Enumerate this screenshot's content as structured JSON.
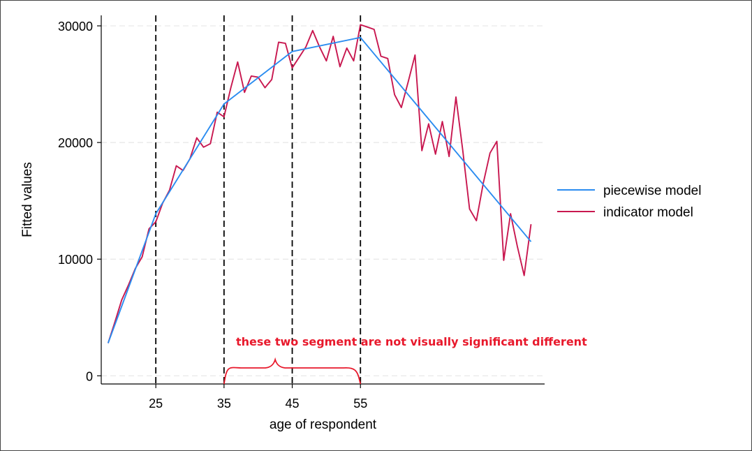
{
  "chart_data": {
    "type": "line",
    "xlabel": "age of respondent",
    "ylabel": "Fitted values",
    "xlim": [
      17,
      82
    ],
    "ylim": [
      -700,
      30900
    ],
    "x_ticks": [
      25,
      35,
      45,
      55
    ],
    "y_ticks": [
      0,
      10000,
      20000,
      30000
    ],
    "x_tick_labels": [
      "25",
      "35",
      "45",
      "55"
    ],
    "y_tick_labels": [
      "0",
      "10000",
      "20000",
      "30000"
    ],
    "grid": "horizontal dashed",
    "legend_position": "right",
    "knots": [
      25,
      35,
      45,
      55
    ],
    "series": [
      {
        "name": "piecewise model",
        "color": "#2b8cf0",
        "x": [
          18,
          25,
          35,
          45,
          55,
          80
        ],
        "y": [
          2800,
          13900,
          23300,
          27800,
          29000,
          11500
        ]
      },
      {
        "name": "indicator model",
        "color": "#c8174f",
        "x": [
          18,
          19,
          20,
          21,
          22,
          23,
          24,
          25,
          26,
          27,
          28,
          29,
          30,
          31,
          32,
          33,
          34,
          35,
          36,
          37,
          38,
          39,
          40,
          41,
          42,
          43,
          44,
          45,
          46,
          47,
          48,
          49,
          50,
          51,
          52,
          53,
          54,
          55,
          56,
          57,
          58,
          59,
          60,
          61,
          62,
          63,
          64,
          65,
          66,
          67,
          68,
          69,
          70,
          71,
          72,
          73,
          74,
          75,
          76,
          77,
          78,
          79,
          80
        ],
        "y": [
          2800,
          4600,
          6500,
          7800,
          9200,
          10200,
          12600,
          13200,
          14800,
          15900,
          18000,
          17600,
          18600,
          20400,
          19600,
          19900,
          22600,
          22200,
          24700,
          26900,
          24300,
          25700,
          25600,
          24700,
          25400,
          28600,
          28500,
          26400,
          27300,
          28200,
          29600,
          28200,
          27000,
          29100,
          26500,
          28100,
          27000,
          30100,
          29900,
          29700,
          27400,
          27200,
          24100,
          23000,
          25200,
          27500,
          19300,
          21600,
          19000,
          21800,
          18800,
          23900,
          19300,
          14300,
          13300,
          16500,
          19100,
          20100,
          9900,
          13900,
          11100,
          8600,
          13000
        ]
      }
    ],
    "annotations": [
      {
        "text": "these two segment are not visually significant different",
        "color": "#e8192c",
        "brace_from": 35,
        "brace_to": 55
      }
    ]
  }
}
